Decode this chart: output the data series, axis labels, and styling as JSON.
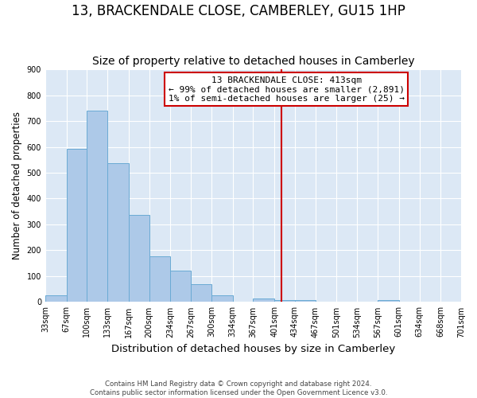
{
  "title": "13, BRACKENDALE CLOSE, CAMBERLEY, GU15 1HP",
  "subtitle": "Size of property relative to detached houses in Camberley",
  "xlabel": "Distribution of detached houses by size in Camberley",
  "ylabel": "Number of detached properties",
  "bin_labels": [
    "33sqm",
    "67sqm",
    "100sqm",
    "133sqm",
    "167sqm",
    "200sqm",
    "234sqm",
    "267sqm",
    "300sqm",
    "334sqm",
    "367sqm",
    "401sqm",
    "434sqm",
    "467sqm",
    "501sqm",
    "534sqm",
    "567sqm",
    "601sqm",
    "634sqm",
    "668sqm",
    "701sqm"
  ],
  "bar_values": [
    27,
    592,
    740,
    536,
    336,
    176,
    120,
    68,
    25,
    0,
    15,
    8,
    6,
    0,
    0,
    0,
    8,
    0,
    0,
    0
  ],
  "bin_edges": [
    33,
    67,
    100,
    133,
    167,
    200,
    234,
    267,
    300,
    334,
    367,
    401,
    434,
    467,
    501,
    534,
    567,
    601,
    634,
    668,
    701
  ],
  "bar_color": "#adc9e8",
  "bar_edge_color": "#6aaad4",
  "vline_x": 413,
  "vline_color": "#cc0000",
  "annotation_line1": "13 BRACKENDALE CLOSE: 413sqm",
  "annotation_line2": "← 99% of detached houses are smaller (2,891)",
  "annotation_line3": "1% of semi-detached houses are larger (25) →",
  "annotation_box_color": "#ffffff",
  "annotation_box_edge": "#cc0000",
  "ylim": [
    0,
    900
  ],
  "yticks": [
    0,
    100,
    200,
    300,
    400,
    500,
    600,
    700,
    800,
    900
  ],
  "background_color": "#dce8f5",
  "footer_text": "Contains HM Land Registry data © Crown copyright and database right 2024.\nContains public sector information licensed under the Open Government Licence v3.0.",
  "title_fontsize": 12,
  "subtitle_fontsize": 10,
  "xlabel_fontsize": 9.5,
  "ylabel_fontsize": 8.5,
  "annotation_fontsize": 8,
  "tick_fontsize": 7
}
